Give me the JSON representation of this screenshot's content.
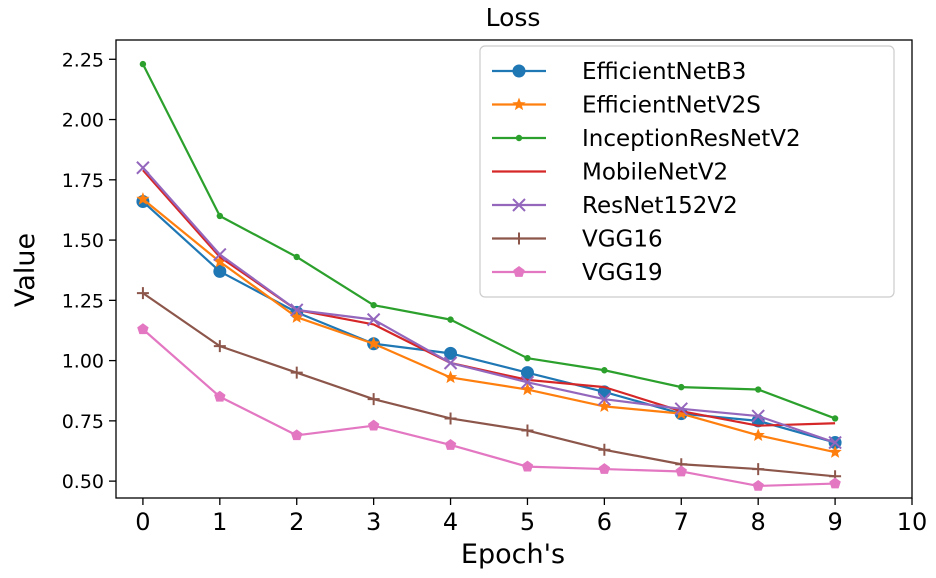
{
  "chart_data": {
    "type": "line",
    "title": "Loss",
    "xlabel": "Epoch's",
    "ylabel": "Value",
    "xlim": [
      -0.35,
      10
    ],
    "ylim": [
      0.43,
      2.33
    ],
    "xticks": [
      0,
      1,
      2,
      3,
      4,
      5,
      6,
      7,
      8,
      9,
      10
    ],
    "yticks": [
      0.5,
      0.75,
      1.0,
      1.25,
      1.5,
      1.75,
      2.0,
      2.25
    ],
    "ytick_labels": [
      "0.50",
      "0.75",
      "1.00",
      "1.25",
      "1.50",
      "1.75",
      "2.00",
      "2.25"
    ],
    "grid": false,
    "legend_position": "top-right",
    "x": [
      0,
      1,
      2,
      3,
      4,
      5,
      6,
      7,
      8,
      9
    ],
    "series": [
      {
        "name": "EfficientNetB3",
        "color": "#1f77b4",
        "marker": "circle",
        "values": [
          1.66,
          1.37,
          1.2,
          1.07,
          1.03,
          0.95,
          0.87,
          0.78,
          0.75,
          0.66
        ]
      },
      {
        "name": "EfficientNetV2S",
        "color": "#ff7f0e",
        "marker": "star",
        "values": [
          1.67,
          1.41,
          1.18,
          1.07,
          0.93,
          0.88,
          0.81,
          0.78,
          0.69,
          0.62
        ]
      },
      {
        "name": "InceptionResNetV2",
        "color": "#2ca02c",
        "marker": "dot",
        "values": [
          2.23,
          1.6,
          1.43,
          1.23,
          1.17,
          1.01,
          0.96,
          0.89,
          0.88,
          0.76
        ]
      },
      {
        "name": "MobileNetV2",
        "color": "#d62728",
        "marker": "none",
        "values": [
          1.79,
          1.43,
          1.21,
          1.15,
          0.99,
          0.92,
          0.89,
          0.79,
          0.73,
          0.74
        ]
      },
      {
        "name": "ResNet152V2",
        "color": "#9467bd",
        "marker": "x",
        "values": [
          1.8,
          1.44,
          1.21,
          1.17,
          0.99,
          0.91,
          0.84,
          0.8,
          0.77,
          0.66
        ]
      },
      {
        "name": "VGG16",
        "color": "#8c564b",
        "marker": "plus",
        "values": [
          1.28,
          1.06,
          0.95,
          0.84,
          0.76,
          0.71,
          0.63,
          0.57,
          0.55,
          0.52
        ]
      },
      {
        "name": "VGG19",
        "color": "#e377c2",
        "marker": "pentagon",
        "values": [
          1.13,
          0.85,
          0.69,
          0.73,
          0.65,
          0.56,
          0.55,
          0.54,
          0.48,
          0.49
        ]
      }
    ]
  }
}
